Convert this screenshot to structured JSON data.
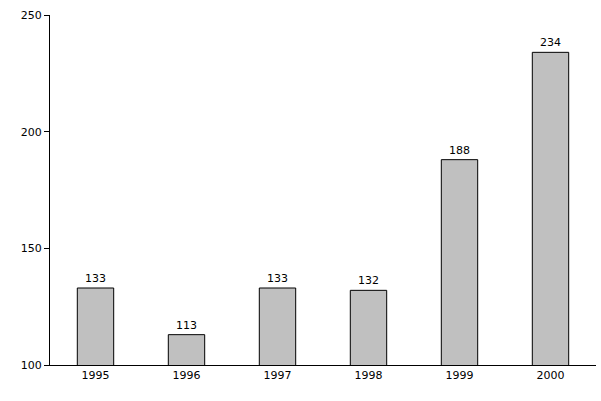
{
  "chart_data": {
    "type": "bar",
    "categories": [
      "1995",
      "1996",
      "1997",
      "1998",
      "1999",
      "2000"
    ],
    "values": [
      133,
      113,
      133,
      132,
      188,
      234
    ],
    "color": "#c0c0c0",
    "ylim": [
      100,
      250
    ],
    "yticks": [
      100,
      150,
      200,
      250
    ],
    "grid": false,
    "data_labels": true
  }
}
